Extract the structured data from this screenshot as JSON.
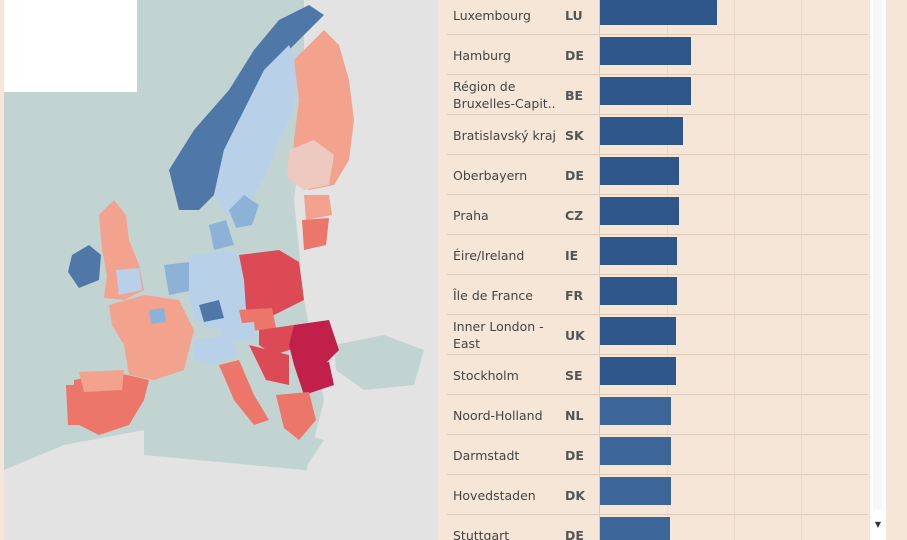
{
  "map": {
    "colors": {
      "sea": "#c2d4d2",
      "land_other": "#e3e3e3",
      "dark_blue": "#4f77a8",
      "mid_blue": "#8db2d8",
      "light_blue": "#b9d1e8",
      "light_pink": "#edc9c0",
      "salmon": "#f3a28e",
      "coral": "#ec7669",
      "red": "#dc4a55",
      "dark_red": "#c1204a"
    }
  },
  "table": {
    "bar_max_value": 1.0,
    "rows": [
      {
        "region": "Luxembourg",
        "code": "LU",
        "value": 0.435,
        "color": "#2e5688"
      },
      {
        "region": "Hamburg",
        "code": "DE",
        "value": 0.338,
        "color": "#2e5688"
      },
      {
        "region": "Région de Bruxelles-Capit..",
        "code": "BE",
        "value": 0.338,
        "color": "#2e5688"
      },
      {
        "region": "Bratislavský kraj",
        "code": "SK",
        "value": 0.308,
        "color": "#2e5688"
      },
      {
        "region": "Oberbayern",
        "code": "DE",
        "value": 0.293,
        "color": "#2e5688"
      },
      {
        "region": "Praha",
        "code": "CZ",
        "value": 0.293,
        "color": "#2e5688"
      },
      {
        "region": "Éire/Ireland",
        "code": "IE",
        "value": 0.289,
        "color": "#2e5688"
      },
      {
        "region": "Île de France",
        "code": "FR",
        "value": 0.289,
        "color": "#2e5688"
      },
      {
        "region": "Inner London - East",
        "code": "UK",
        "value": 0.285,
        "color": "#2e5688"
      },
      {
        "region": "Stockholm",
        "code": "SE",
        "value": 0.285,
        "color": "#2e5688"
      },
      {
        "region": "Noord-Holland",
        "code": "NL",
        "value": 0.266,
        "color": "#3c6698"
      },
      {
        "region": "Darmstadt",
        "code": "DE",
        "value": 0.266,
        "color": "#3c6698"
      },
      {
        "region": "Hovedstaden",
        "code": "DK",
        "value": 0.266,
        "color": "#3c6698"
      },
      {
        "region": "Stuttgart",
        "code": "DE",
        "value": 0.262,
        "color": "#3c6698"
      }
    ]
  },
  "scrollbar": {
    "down_arrow": "▼"
  }
}
